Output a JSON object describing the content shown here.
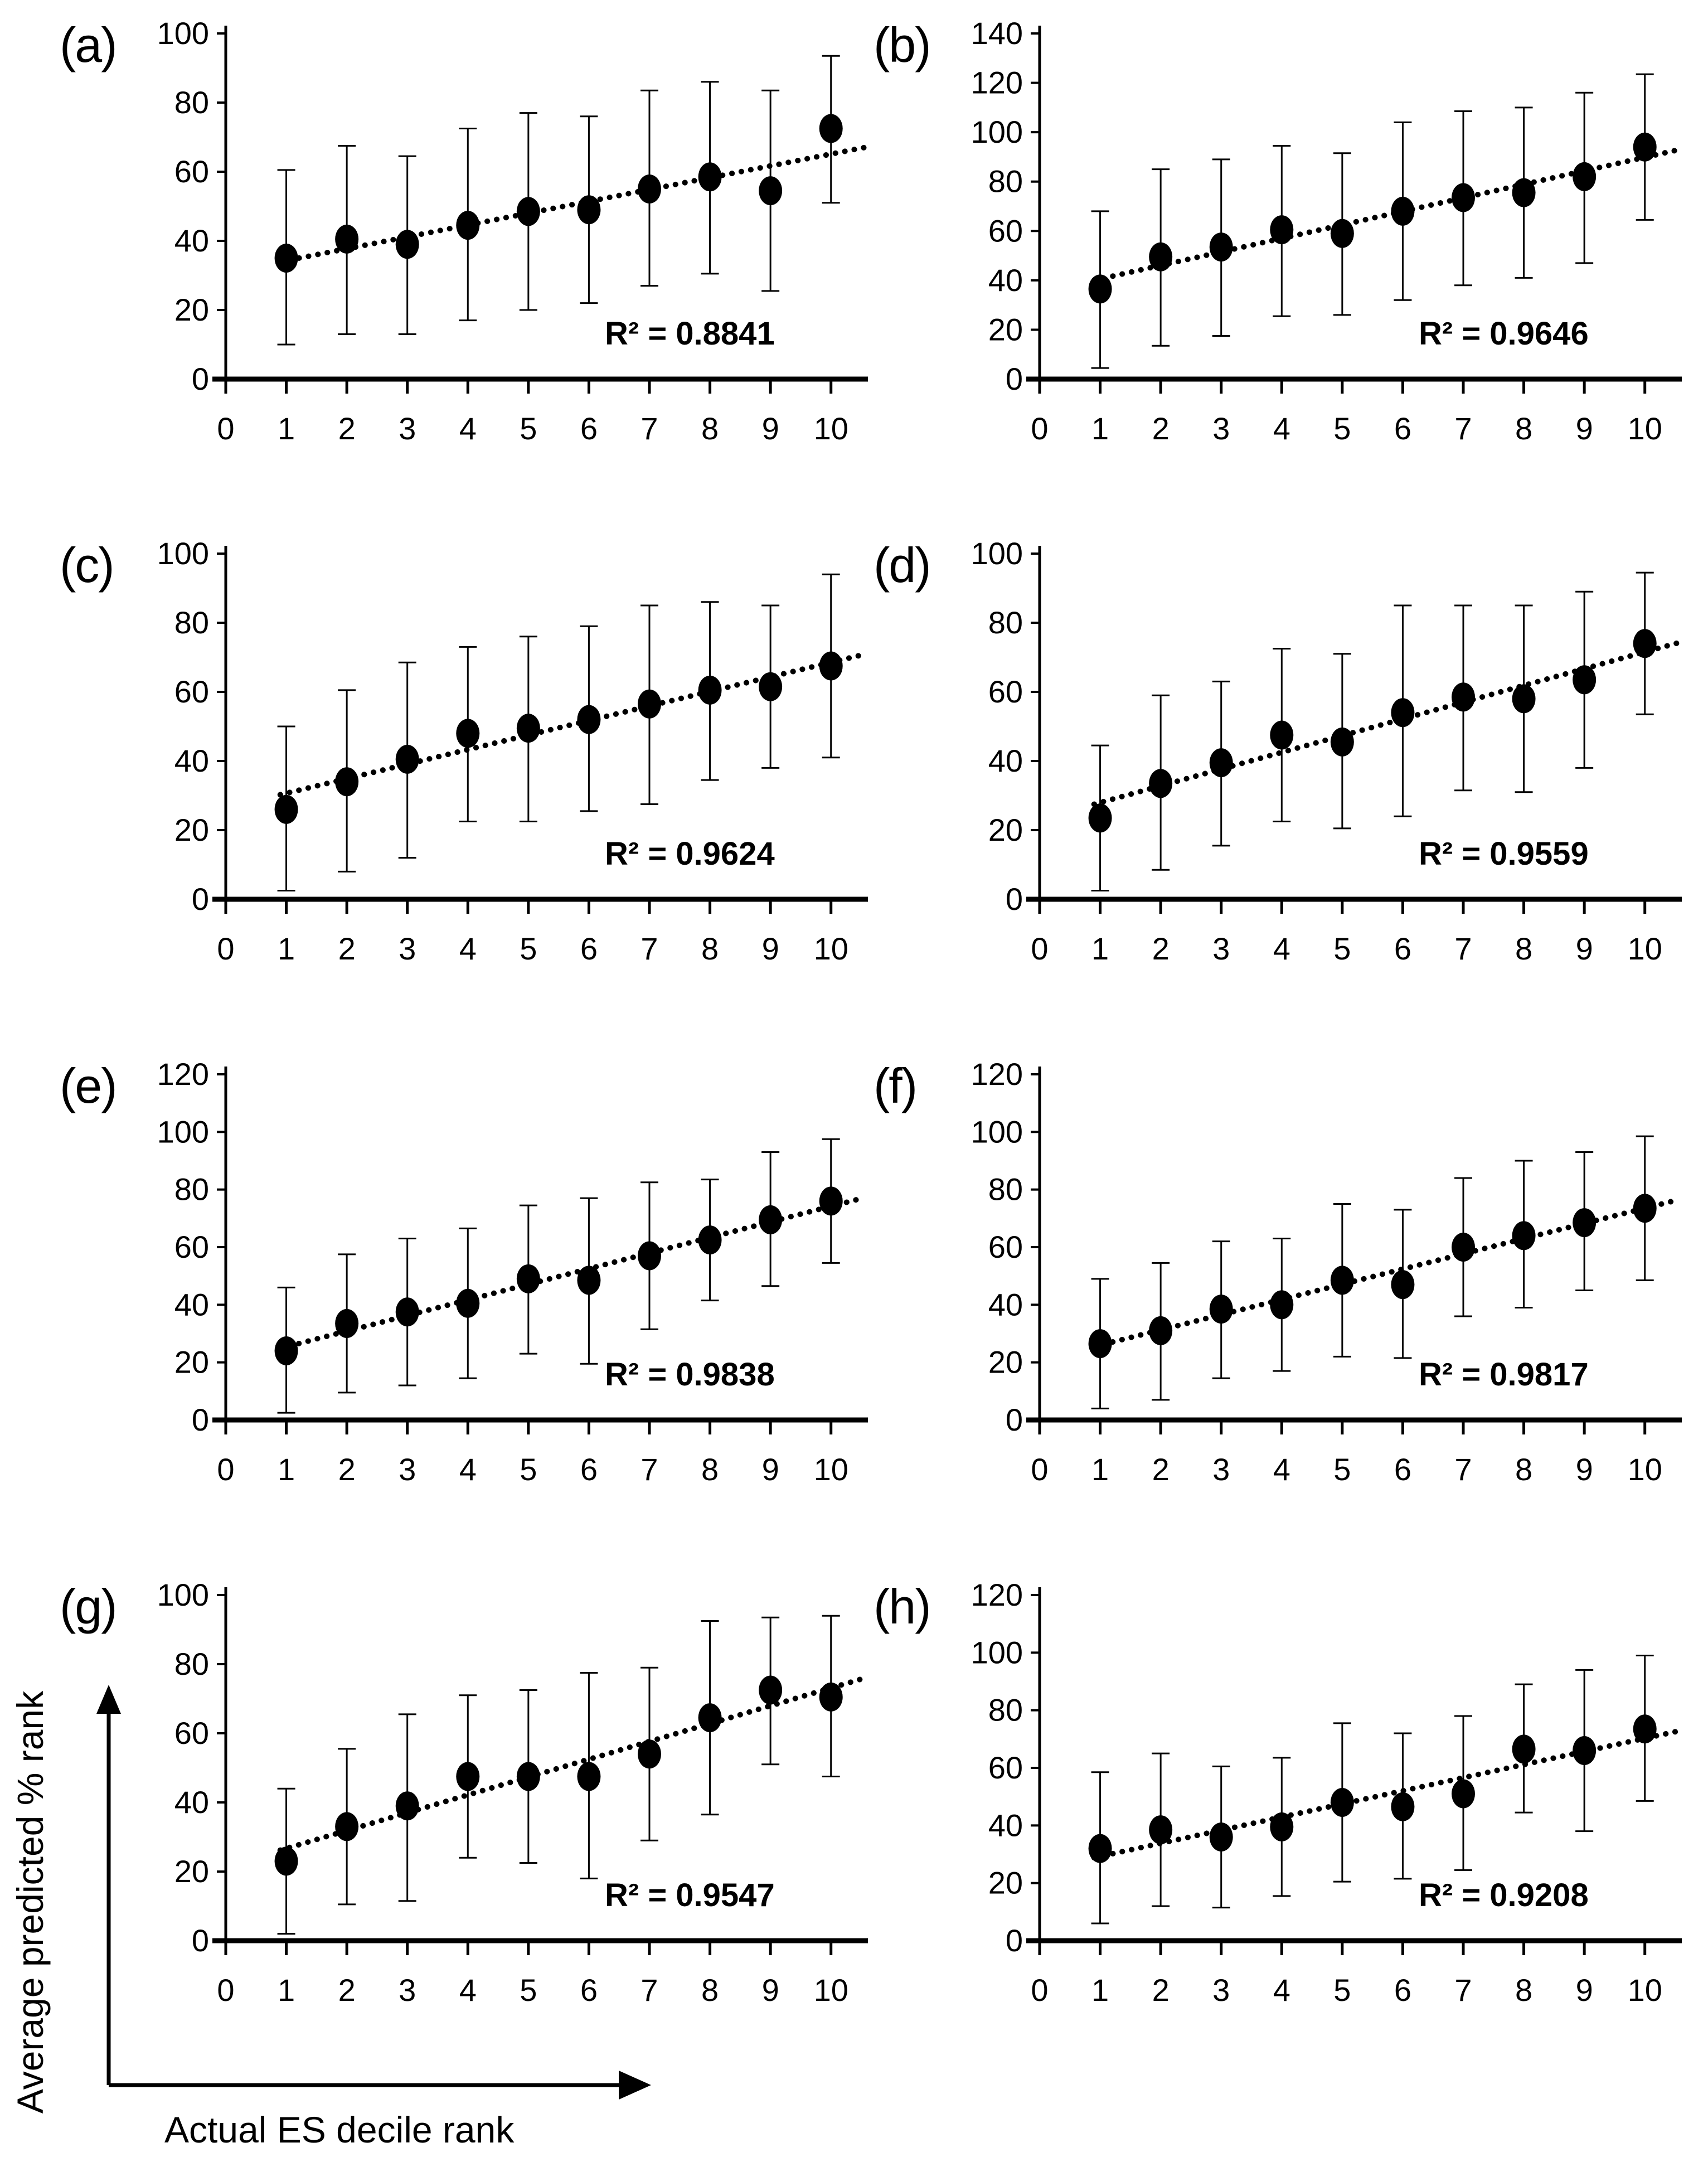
{
  "figure": {
    "y_axis_label": "Average predicted % rank",
    "x_axis_label": "Actual ES decile rank"
  },
  "chart_data": [
    {
      "type": "scatter",
      "panel": "(a)",
      "r2_label": "R² = 0.8841",
      "xlim": [
        0,
        10.5
      ],
      "ylim": [
        0,
        100
      ],
      "xticks": [
        0,
        1,
        2,
        3,
        4,
        5,
        6,
        7,
        8,
        9,
        10
      ],
      "yticks": [
        0,
        20,
        40,
        60,
        80,
        100
      ],
      "x": [
        1,
        2,
        3,
        4,
        5,
        6,
        7,
        8,
        9,
        10
      ],
      "y": [
        35,
        40.5,
        39,
        44.5,
        48.5,
        49,
        55,
        58.5,
        54.5,
        72.5
      ],
      "err_low": [
        10,
        13,
        13,
        17,
        20,
        22,
        27,
        30.5,
        25.5,
        51
      ],
      "err_high": [
        60.5,
        67.5,
        64.5,
        72.5,
        77,
        76,
        83.5,
        86,
        83.5,
        93.5
      ],
      "trendline": "dotted linear least-squares fit"
    },
    {
      "type": "scatter",
      "panel": "(b)",
      "r2_label": "R² = 0.9646",
      "xlim": [
        0,
        10.5
      ],
      "ylim": [
        0,
        140
      ],
      "xticks": [
        0,
        1,
        2,
        3,
        4,
        5,
        6,
        7,
        8,
        9,
        10
      ],
      "yticks": [
        0,
        20,
        40,
        60,
        80,
        100,
        120,
        140
      ],
      "x": [
        1,
        2,
        3,
        4,
        5,
        6,
        7,
        8,
        9,
        10
      ],
      "y": [
        36.5,
        49.5,
        53.5,
        60.5,
        59,
        68,
        73.5,
        75.5,
        82,
        94
      ],
      "err_low": [
        4.5,
        13.5,
        17.5,
        25.5,
        26,
        32,
        38,
        41,
        47,
        64.5
      ],
      "err_high": [
        68,
        85,
        89,
        94.5,
        91.5,
        104,
        108.5,
        110,
        116,
        123.5
      ],
      "trendline": "dotted linear least-squares fit"
    },
    {
      "type": "scatter",
      "panel": "(c)",
      "r2_label": "R² = 0.9624",
      "xlim": [
        0,
        10.5
      ],
      "ylim": [
        0,
        100
      ],
      "xticks": [
        0,
        1,
        2,
        3,
        4,
        5,
        6,
        7,
        8,
        9,
        10
      ],
      "yticks": [
        0,
        20,
        40,
        60,
        80,
        100
      ],
      "x": [
        1,
        2,
        3,
        4,
        5,
        6,
        7,
        8,
        9,
        10
      ],
      "y": [
        26,
        34,
        40.5,
        48,
        49.5,
        52,
        56.5,
        60.5,
        61.5,
        67.5
      ],
      "err_low": [
        2.5,
        8,
        12,
        22.5,
        22.5,
        25.5,
        27.5,
        34.5,
        38,
        41
      ],
      "err_high": [
        50,
        60.5,
        68.5,
        73,
        76,
        79,
        85,
        86,
        85,
        94
      ],
      "trendline": "dotted linear least-squares fit"
    },
    {
      "type": "scatter",
      "panel": "(d)",
      "r2_label": "R² = 0.9559",
      "xlim": [
        0,
        10.5
      ],
      "ylim": [
        0,
        100
      ],
      "xticks": [
        0,
        1,
        2,
        3,
        4,
        5,
        6,
        7,
        8,
        9,
        10
      ],
      "yticks": [
        0,
        20,
        40,
        60,
        80,
        100
      ],
      "x": [
        1,
        2,
        3,
        4,
        5,
        6,
        7,
        8,
        9,
        10
      ],
      "y": [
        23.5,
        33.5,
        39.5,
        47.5,
        45.5,
        54,
        58.5,
        58,
        63.5,
        74
      ],
      "err_low": [
        2.5,
        8.5,
        15.5,
        22.5,
        20.5,
        24,
        31.5,
        31,
        38,
        53.5
      ],
      "err_high": [
        44.5,
        59,
        63,
        72.5,
        71,
        85,
        85,
        85,
        89,
        94.5
      ],
      "trendline": "dotted linear least-squares fit"
    },
    {
      "type": "scatter",
      "panel": "(e)",
      "r2_label": "R² = 0.9838",
      "xlim": [
        0,
        10.5
      ],
      "ylim": [
        0,
        120
      ],
      "xticks": [
        0,
        1,
        2,
        3,
        4,
        5,
        6,
        7,
        8,
        9,
        10
      ],
      "yticks": [
        0,
        20,
        40,
        60,
        80,
        100,
        120
      ],
      "x": [
        1,
        2,
        3,
        4,
        5,
        6,
        7,
        8,
        9,
        10
      ],
      "y": [
        24,
        33.5,
        37.5,
        40.5,
        49,
        48.5,
        57,
        62.5,
        69.5,
        76
      ],
      "err_low": [
        2.5,
        9.5,
        12,
        14.5,
        23,
        19.5,
        31.5,
        41.5,
        46.5,
        54.5
      ],
      "err_high": [
        46,
        57.5,
        63,
        66.5,
        74.5,
        77,
        82.5,
        83.5,
        93,
        97.5
      ],
      "trendline": "dotted linear least-squares fit"
    },
    {
      "type": "scatter",
      "panel": "(f)",
      "r2_label": "R² = 0.9817",
      "xlim": [
        0,
        10.5
      ],
      "ylim": [
        0,
        120
      ],
      "xticks": [
        0,
        1,
        2,
        3,
        4,
        5,
        6,
        7,
        8,
        9,
        10
      ],
      "yticks": [
        0,
        20,
        40,
        60,
        80,
        100,
        120
      ],
      "x": [
        1,
        2,
        3,
        4,
        5,
        6,
        7,
        8,
        9,
        10
      ],
      "y": [
        26.5,
        31,
        38.5,
        40,
        48.5,
        47,
        60,
        64,
        68.5,
        73.5
      ],
      "err_low": [
        4,
        7,
        14.5,
        17,
        22,
        21.5,
        36,
        39,
        45,
        48.5
      ],
      "err_high": [
        49,
        54.5,
        62,
        63,
        75,
        73,
        84,
        90,
        93,
        98.5
      ],
      "trendline": "dotted linear least-squares fit"
    },
    {
      "type": "scatter",
      "panel": "(g)",
      "r2_label": "R² = 0.9547",
      "xlim": [
        0,
        10.5
      ],
      "ylim": [
        0,
        100
      ],
      "xticks": [
        0,
        1,
        2,
        3,
        4,
        5,
        6,
        7,
        8,
        9,
        10
      ],
      "yticks": [
        0,
        20,
        40,
        60,
        80,
        100
      ],
      "x": [
        1,
        2,
        3,
        4,
        5,
        6,
        7,
        8,
        9,
        10
      ],
      "y": [
        23,
        33,
        39,
        47.5,
        47.5,
        47.5,
        54,
        64.5,
        72.5,
        70.5
      ],
      "err_low": [
        2,
        10.5,
        11.5,
        24,
        22.5,
        18,
        29,
        36.5,
        51,
        47.5
      ],
      "err_high": [
        44,
        55.5,
        65.5,
        71,
        72.5,
        77.5,
        79,
        92.5,
        93.5,
        94
      ],
      "trendline": "dotted linear least-squares fit"
    },
    {
      "type": "scatter",
      "panel": "(h)",
      "r2_label": "R² = 0.9208",
      "xlim": [
        0,
        10.5
      ],
      "ylim": [
        0,
        120
      ],
      "xticks": [
        0,
        1,
        2,
        3,
        4,
        5,
        6,
        7,
        8,
        9,
        10
      ],
      "yticks": [
        0,
        20,
        40,
        60,
        80,
        100,
        120
      ],
      "x": [
        1,
        2,
        3,
        4,
        5,
        6,
        7,
        8,
        9,
        10
      ],
      "y": [
        32,
        38.5,
        36,
        39.5,
        48,
        46.5,
        51,
        66.5,
        66,
        73.5
      ],
      "err_low": [
        6,
        12,
        11.5,
        15.5,
        20.5,
        21.5,
        24.5,
        44.5,
        38,
        48.5
      ],
      "err_high": [
        58.5,
        65,
        60.5,
        63.5,
        75.5,
        72,
        78,
        89,
        94,
        99
      ],
      "trendline": "dotted linear least-squares fit"
    }
  ]
}
